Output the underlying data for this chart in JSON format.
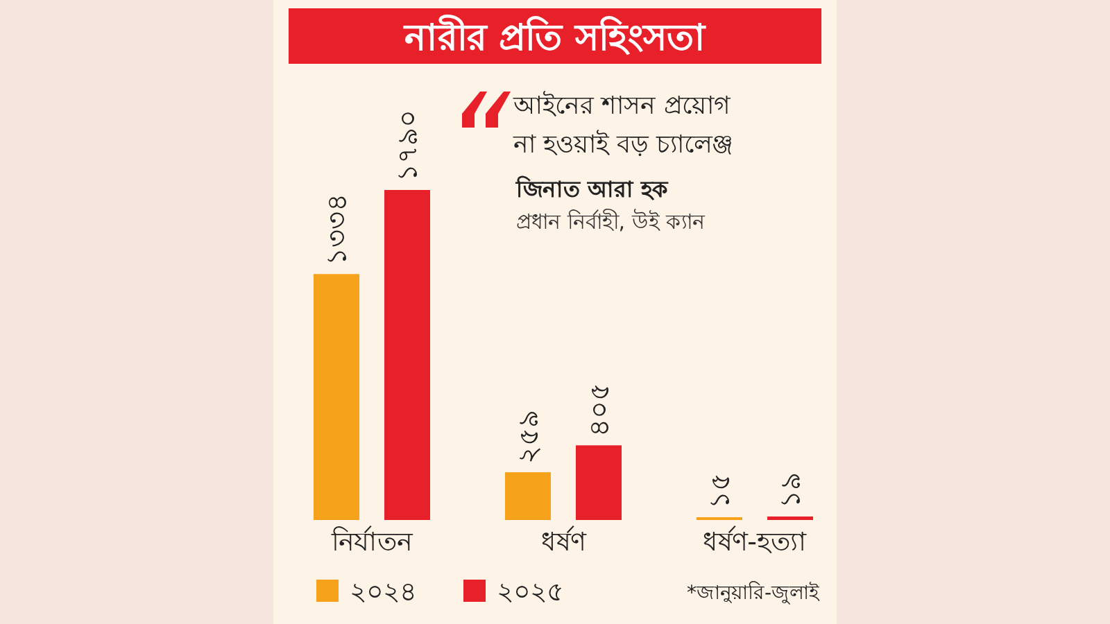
{
  "chart_data": {
    "type": "bar",
    "title": "নারীর প্রতি সহিংসতা",
    "categories": [
      "নির্যাতন",
      "ধর্ষণ",
      "ধর্ষণ-হত্যা"
    ],
    "series": [
      {
        "name": "২০২৪",
        "color": "#f7a21b",
        "values": [
          1334,
          259,
          15
        ],
        "value_labels": [
          "১৩৩৪",
          "২৫৯",
          "১৫"
        ]
      },
      {
        "name": "২০২৫",
        "color": "#e8202a",
        "values": [
          1790,
          405,
          19
        ],
        "value_labels": [
          "১৭৯০",
          "৪০৫",
          "১৯"
        ]
      }
    ],
    "legend": "bottom",
    "annotations": [
      "আইনের শাসন প্রয়োগ না হওয়াই বড় চ্যালেঞ্জ",
      "জিনাত আরা হক",
      "প্রধান নির্বাহী, উই ক্যান",
      "*জানুয়ারি-জুলাই"
    ]
  }
}
